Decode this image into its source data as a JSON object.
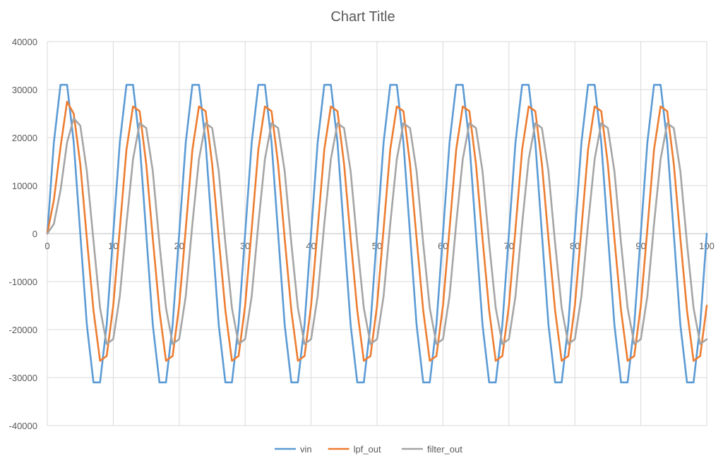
{
  "chart_data": {
    "type": "line",
    "title": "Chart Title",
    "xlabel": "",
    "ylabel": "",
    "xlim": [
      0,
      100
    ],
    "ylim": [
      -40000,
      40000
    ],
    "x_ticks": [
      0,
      10,
      20,
      30,
      40,
      50,
      60,
      70,
      80,
      90,
      100
    ],
    "y_ticks": [
      40000,
      30000,
      20000,
      10000,
      0,
      -10000,
      -20000,
      -30000,
      -40000
    ],
    "grid": true,
    "legend_position": "bottom",
    "x": [
      0,
      1,
      2,
      3,
      4,
      5,
      6,
      7,
      8,
      9,
      10,
      11,
      12,
      13,
      14,
      15,
      16,
      17,
      18,
      19,
      20,
      21,
      22,
      23,
      24,
      25,
      26,
      27,
      28,
      29,
      30,
      31,
      32,
      33,
      34,
      35,
      36,
      37,
      38,
      39,
      40,
      41,
      42,
      43,
      44,
      45,
      46,
      47,
      48,
      49,
      50,
      51,
      52,
      53,
      54,
      55,
      56,
      57,
      58,
      59,
      60,
      61,
      62,
      63,
      64,
      65,
      66,
      67,
      68,
      69,
      70,
      71,
      72,
      73,
      74,
      75,
      76,
      77,
      78,
      79,
      80,
      81,
      82,
      83,
      84,
      85,
      86,
      87,
      88,
      89,
      90,
      91,
      92,
      93,
      94,
      95,
      96,
      97,
      98,
      99,
      100
    ],
    "series": [
      {
        "name": "vin",
        "color": "#5B9BD5",
        "values": [
          0,
          19000,
          31000,
          31000,
          19000,
          0,
          -19000,
          -31000,
          -31000,
          -19000,
          0,
          19000,
          31000,
          31000,
          19000,
          0,
          -19000,
          -31000,
          -31000,
          -19000,
          0,
          19000,
          31000,
          31000,
          19000,
          0,
          -19000,
          -31000,
          -31000,
          -19000,
          0,
          19000,
          31000,
          31000,
          19000,
          0,
          -19000,
          -31000,
          -31000,
          -19000,
          0,
          19000,
          31000,
          31000,
          19000,
          0,
          -19000,
          -31000,
          -31000,
          -19000,
          0,
          19000,
          31000,
          31000,
          19000,
          0,
          -19000,
          -31000,
          -31000,
          -19000,
          0,
          19000,
          31000,
          31000,
          19000,
          0,
          -19000,
          -31000,
          -31000,
          -19000,
          0,
          19000,
          31000,
          31000,
          19000,
          0,
          -19000,
          -31000,
          -31000,
          -19000,
          0,
          19000,
          31000,
          31000,
          19000,
          0,
          -19000,
          -31000,
          -31000,
          -19000,
          0,
          19000,
          31000,
          31000,
          19000,
          0,
          -19000,
          -31000,
          -31000,
          -19000,
          0
        ]
      },
      {
        "name": "lpf_out",
        "color": "#ED7D31",
        "values": [
          0,
          7000,
          18000,
          27500,
          25000,
          14500,
          -1000,
          -16000,
          -26500,
          -25500,
          -15000,
          1000,
          17500,
          26500,
          25500,
          14500,
          -1000,
          -16000,
          -26500,
          -25500,
          -15000,
          1000,
          17500,
          26500,
          25500,
          14500,
          -1000,
          -16000,
          -26500,
          -25500,
          -15000,
          1000,
          17500,
          26500,
          25500,
          14500,
          -1000,
          -16000,
          -26500,
          -25500,
          -15000,
          1000,
          17500,
          26500,
          25500,
          14500,
          -1000,
          -16000,
          -26500,
          -25500,
          -15000,
          1000,
          17500,
          26500,
          25500,
          14500,
          -1000,
          -16000,
          -26500,
          -25500,
          -15000,
          1000,
          17500,
          26500,
          25500,
          14500,
          -1000,
          -16000,
          -26500,
          -25500,
          -15000,
          1000,
          17500,
          26500,
          25500,
          14500,
          -1000,
          -16000,
          -26500,
          -25500,
          -15000,
          1000,
          17500,
          26500,
          25500,
          14500,
          -1000,
          -16000,
          -26500,
          -25500,
          -15000,
          1000,
          17500,
          26500,
          25500,
          14500,
          -1000,
          -16000,
          -26500,
          -25500,
          -15000
        ]
      },
      {
        "name": "filter_out",
        "color": "#A5A5A5",
        "values": [
          0,
          2000,
          9000,
          19000,
          24000,
          22500,
          13000,
          -1500,
          -15500,
          -23000,
          -22000,
          -13000,
          2000,
          15500,
          23000,
          22000,
          13000,
          -2000,
          -15500,
          -23000,
          -22000,
          -13000,
          2000,
          15500,
          23000,
          22000,
          13000,
          -2000,
          -15500,
          -23000,
          -22000,
          -13000,
          2000,
          15500,
          23000,
          22000,
          13000,
          -2000,
          -15500,
          -23000,
          -22000,
          -13000,
          2000,
          15500,
          23000,
          22000,
          13000,
          -2000,
          -15500,
          -23000,
          -22000,
          -13000,
          2000,
          15500,
          23000,
          22000,
          13000,
          -2000,
          -15500,
          -23000,
          -22000,
          -13000,
          2000,
          15500,
          23000,
          22000,
          13000,
          -2000,
          -15500,
          -23000,
          -22000,
          -13000,
          2000,
          15500,
          23000,
          22000,
          13000,
          -2000,
          -15500,
          -23000,
          -22000,
          -13000,
          2000,
          15500,
          23000,
          22000,
          13000,
          -2000,
          -15500,
          -23000,
          -22000,
          -13000,
          2000,
          15500,
          23000,
          22000,
          13000,
          -2000,
          -15500,
          -23000,
          -22000
        ]
      }
    ]
  }
}
